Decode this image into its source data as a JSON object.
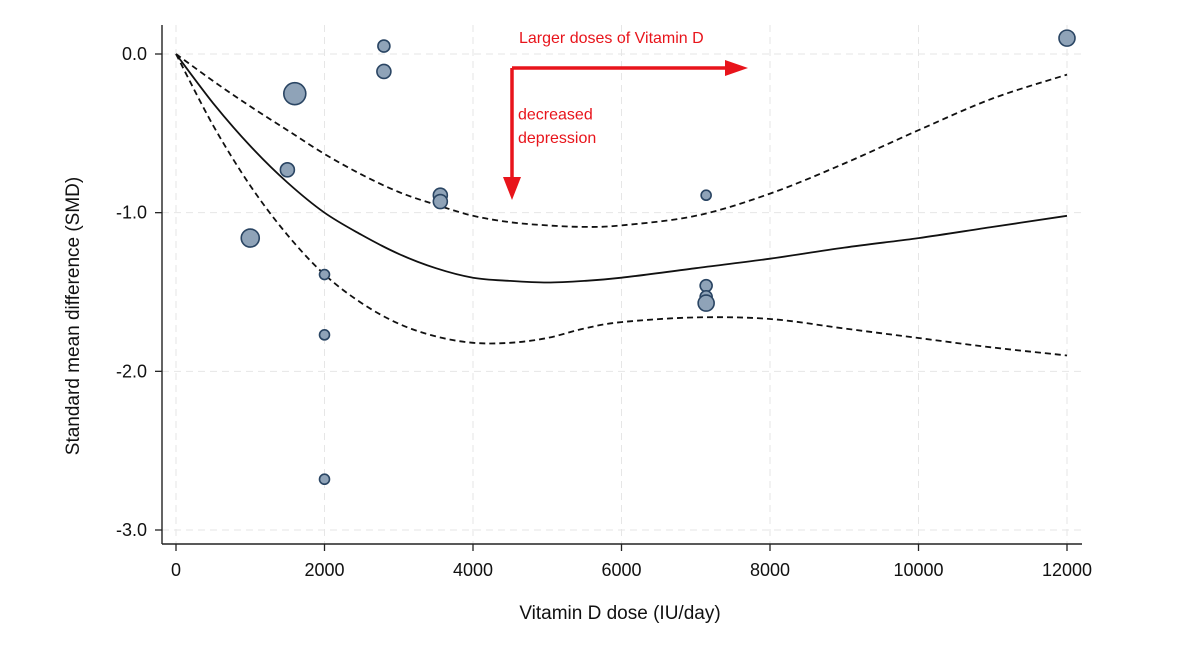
{
  "chart_data": {
    "type": "scatter",
    "xlabel": "Vitamin D dose (IU/day)",
    "ylabel": "Standard mean difference (SMD)",
    "xlim": [
      -200,
      12200
    ],
    "ylim": [
      -3.1,
      0.18
    ],
    "x_ticks": [
      0,
      2000,
      4000,
      6000,
      8000,
      10000,
      12000
    ],
    "x_tick_labels": [
      "0",
      "2000",
      "4000",
      "6000",
      "8000",
      "10000",
      "12000"
    ],
    "y_ticks": [
      0.0,
      -1.0,
      -2.0,
      -3.0
    ],
    "y_tick_labels": [
      "0.0",
      "-1.0",
      "-2.0",
      "-3.0"
    ],
    "grid": true,
    "marker_color": "#8fa3b8",
    "marker_edge_color": "#2a4563",
    "points": [
      {
        "x": 1000,
        "y": -1.16,
        "size": 9
      },
      {
        "x": 1500,
        "y": -0.73,
        "size": 7
      },
      {
        "x": 1600,
        "y": -0.25,
        "size": 11
      },
      {
        "x": 2000,
        "y": -1.39,
        "size": 5
      },
      {
        "x": 2000,
        "y": -1.77,
        "size": 5
      },
      {
        "x": 2000,
        "y": -2.68,
        "size": 5
      },
      {
        "x": 2800,
        "y": 0.05,
        "size": 6
      },
      {
        "x": 2800,
        "y": -0.11,
        "size": 7
      },
      {
        "x": 3560,
        "y": -0.89,
        "size": 7
      },
      {
        "x": 3560,
        "y": -0.93,
        "size": 7
      },
      {
        "x": 7140,
        "y": -0.89,
        "size": 5
      },
      {
        "x": 7140,
        "y": -1.46,
        "size": 6
      },
      {
        "x": 7140,
        "y": -1.53,
        "size": 6
      },
      {
        "x": 7140,
        "y": -1.57,
        "size": 8
      },
      {
        "x": 12000,
        "y": 0.1,
        "size": 8
      }
    ],
    "series": [
      {
        "style": "solid",
        "x": [
          0,
          500,
          1000,
          1500,
          2000,
          2500,
          3000,
          3500,
          4000,
          4500,
          5000,
          5500,
          6000,
          7000,
          8000,
          9000,
          10000,
          11000,
          12000
        ],
        "y": [
          0,
          -0.31,
          -0.58,
          -0.81,
          -1.0,
          -1.14,
          -1.26,
          -1.35,
          -1.41,
          -1.43,
          -1.44,
          -1.43,
          -1.41,
          -1.35,
          -1.29,
          -1.22,
          -1.16,
          -1.09,
          -1.02
        ]
      },
      {
        "style": "dashed",
        "x": [
          0,
          500,
          1000,
          1500,
          2000,
          2500,
          3000,
          3500,
          4000,
          4500,
          5000,
          5500,
          6000,
          7000,
          8000,
          9000,
          10000,
          11000,
          12000
        ],
        "y": [
          0,
          -0.17,
          -0.33,
          -0.48,
          -0.63,
          -0.76,
          -0.87,
          -0.95,
          -1.02,
          -1.06,
          -1.08,
          -1.09,
          -1.08,
          -1.02,
          -0.88,
          -0.69,
          -0.48,
          -0.28,
          -0.13
        ]
      },
      {
        "style": "dashed",
        "x": [
          0,
          500,
          1000,
          1500,
          2000,
          2500,
          3000,
          3500,
          4000,
          4500,
          5000,
          5500,
          6000,
          7000,
          8000,
          9000,
          10000,
          11000,
          12000
        ],
        "y": [
          0,
          -0.45,
          -0.83,
          -1.14,
          -1.39,
          -1.57,
          -1.7,
          -1.78,
          -1.82,
          -1.82,
          -1.79,
          -1.73,
          -1.69,
          -1.66,
          -1.67,
          -1.73,
          -1.79,
          -1.85,
          -1.9
        ]
      }
    ],
    "annotations": [
      {
        "text": "Larger doses of Vitamin D",
        "color": "#e8141b",
        "arrow": "right",
        "x": 4500,
        "y": 0.1
      },
      {
        "text": "decreased",
        "color": "#e8141b",
        "arrow": "down",
        "x": 4500,
        "y": -0.38
      },
      {
        "text": "depression",
        "color": "#e8141b",
        "x": 4500,
        "y": -0.53
      }
    ]
  }
}
